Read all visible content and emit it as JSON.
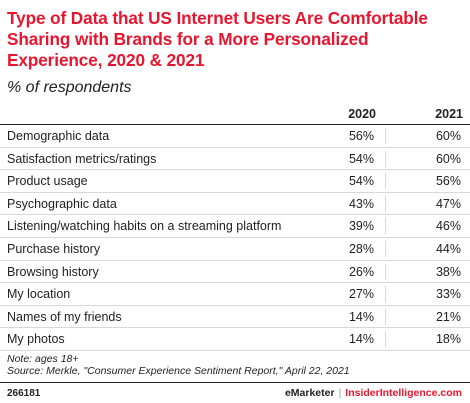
{
  "chart_data": {
    "type": "table",
    "title": "Type of Data that US Internet Users Are Comfortable Sharing with Brands for a More Personalized Experience, 2020 & 2021",
    "subtitle": "% of respondents",
    "columns": [
      "2020",
      "2021"
    ],
    "rows": [
      {
        "label": "Demographic data",
        "v2020": "56%",
        "v2021": "60%"
      },
      {
        "label": "Satisfaction metrics/ratings",
        "v2020": "54%",
        "v2021": "60%"
      },
      {
        "label": "Product usage",
        "v2020": "54%",
        "v2021": "56%"
      },
      {
        "label": "Psychographic data",
        "v2020": "43%",
        "v2021": "47%"
      },
      {
        "label": "Listening/watching habits on a streaming platform",
        "v2020": "39%",
        "v2021": "46%"
      },
      {
        "label": "Purchase history",
        "v2020": "28%",
        "v2021": "44%"
      },
      {
        "label": "Browsing history",
        "v2020": "26%",
        "v2021": "38%"
      },
      {
        "label": "My location",
        "v2020": "27%",
        "v2021": "33%"
      },
      {
        "label": "Names of my friends",
        "v2020": "14%",
        "v2021": "21%"
      },
      {
        "label": "My photos",
        "v2020": "14%",
        "v2021": "18%"
      }
    ],
    "note": "Note: ages 18+",
    "source": "Source: Merkle, \"Consumer Experience Sentiment Report,\" April 22, 2021"
  },
  "footer": {
    "chart_id": "266181",
    "brand_left": "eMarketer",
    "brand_sep": "|",
    "brand_right": "InsiderIntelligence.com"
  },
  "colors": {
    "accent": "#e8152f",
    "text": "#222222",
    "rule": "#d8d8d8"
  }
}
